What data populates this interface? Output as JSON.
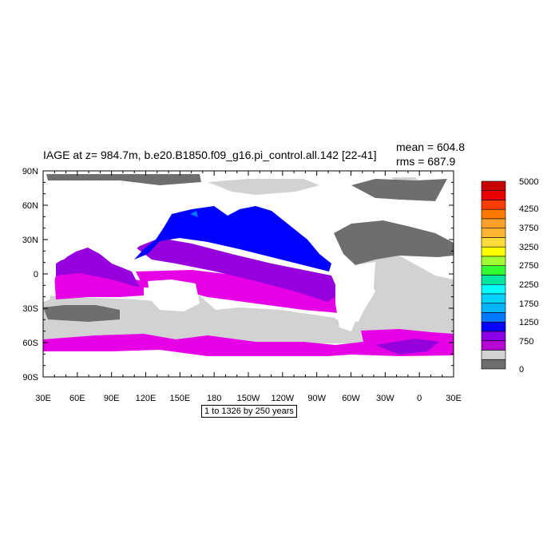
{
  "title": "IAGE at z= 984.7m, b.e20.B1850.f09_g16.pi_control.all.142 [22-41]",
  "stats": {
    "mean": "mean = 604.8",
    "rms": "rms = 687.9"
  },
  "footnote": "1 to 1326 by 250 years",
  "lat_labels": [
    "90N",
    "60N",
    "30N",
    "0",
    "30S",
    "60S",
    "90S"
  ],
  "lon_labels": [
    "30E",
    "60E",
    "90E",
    "120E",
    "150E",
    "180",
    "150W",
    "120W",
    "90W",
    "60W",
    "30W",
    "0",
    "30E"
  ],
  "colorbar": {
    "labels": [
      "5000",
      "4250",
      "3750",
      "3250",
      "2750",
      "2250",
      "1750",
      "1250",
      "750",
      "0"
    ],
    "colors": [
      "#c80000",
      "#e80000",
      "#ff3c00",
      "#ff7800",
      "#ffa028",
      "#ffb432",
      "#ffdc3c",
      "#ffff00",
      "#a0ff32",
      "#32ff32",
      "#00e6a0",
      "#00ffff",
      "#00d2ff",
      "#00b4ff",
      "#0078ff",
      "#0000ff",
      "#8c00e6",
      "#b400d2",
      "#d2d2d2",
      "#6e6e6e"
    ]
  },
  "map": {
    "land_color": "#ffffff",
    "region_colors": {
      "dark_gray": "#6e6e6e",
      "light_gray": "#d2d2d2",
      "magenta": "#e600e6",
      "purple": "#9600dc",
      "blue": "#0000ff",
      "light_blue": "#0078ff"
    }
  }
}
